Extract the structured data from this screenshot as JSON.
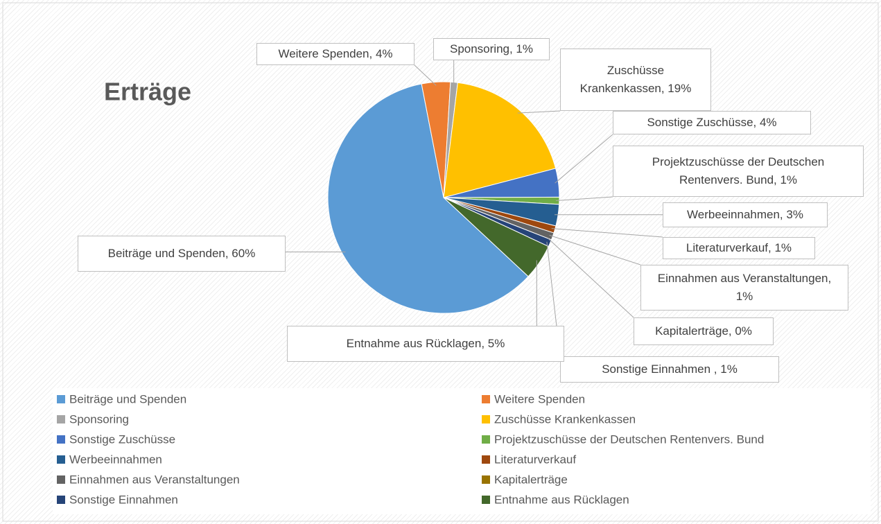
{
  "chart_data": {
    "type": "pie",
    "title": "Erträge",
    "categories": [
      "Beiträge und Spenden",
      "Weitere Spenden",
      "Sponsoring",
      "Zuschüsse Krankenkassen",
      "Sonstige Zuschüsse",
      "Projektzuschüsse der Deutschen Rentenvers. Bund",
      "Werbeeinnahmen",
      "Literaturverkauf",
      "Einnahmen aus Veranstaltungen",
      "Kapitalerträge",
      "Sonstige Einnahmen",
      "Entnahme aus Rücklagen"
    ],
    "values": [
      60,
      4,
      1,
      19,
      4,
      1,
      3,
      1,
      1,
      0,
      1,
      5
    ],
    "value_labels": [
      "Beiträge und Spenden, 60%",
      "Weitere Spenden, 4%",
      "Sponsoring, 1%",
      "Zuschüsse Krankenkassen, 19%",
      "Sonstige Zuschüsse, 4%",
      "Projektzuschüsse der Deutschen Rentenvers. Bund, 1%",
      "Werbeeinnahmen, 3%",
      "Literaturverkauf, 1%",
      "Einnahmen aus Veranstaltungen, 1%",
      "Kapitalerträge, 0%",
      "Sonstige Einnahmen , 1%",
      "Entnahme aus Rücklagen, 5%"
    ],
    "colors": [
      "#5b9bd5",
      "#ed7d31",
      "#a5a5a5",
      "#ffc000",
      "#4472c4",
      "#70ad47",
      "#255e91",
      "#9e480e",
      "#636363",
      "#997300",
      "#264478",
      "#43682b"
    ],
    "legend": "bottom"
  }
}
